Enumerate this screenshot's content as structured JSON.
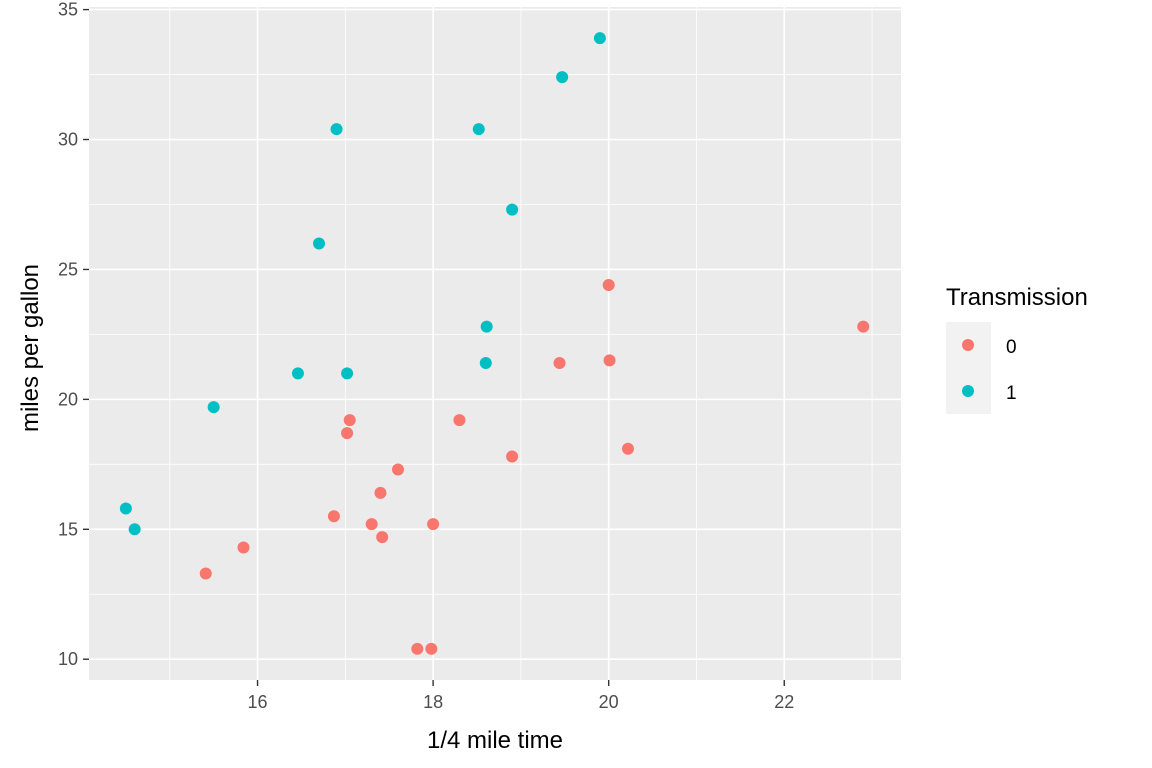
{
  "chart_data": {
    "type": "scatter",
    "title": "",
    "xlabel": "1/4 mile time",
    "ylabel": "miles per gallon",
    "xlim": [
      14.08,
      23.33
    ],
    "ylim": [
      9.2,
      35.1
    ],
    "x_ticks": [
      16,
      18,
      20,
      22
    ],
    "y_ticks": [
      10,
      15,
      20,
      25,
      30,
      35
    ],
    "grid": true,
    "legend": {
      "title": "Transmission",
      "position": "right"
    },
    "series": [
      {
        "name": "0",
        "color": "#F8766D",
        "points": [
          {
            "x": 20.22,
            "y": 18.1
          },
          {
            "x": 17.02,
            "y": 18.7
          },
          {
            "x": 19.44,
            "y": 21.4
          },
          {
            "x": 15.84,
            "y": 14.3
          },
          {
            "x": 20.0,
            "y": 24.4
          },
          {
            "x": 22.9,
            "y": 22.8
          },
          {
            "x": 18.3,
            "y": 19.2
          },
          {
            "x": 18.9,
            "y": 17.8
          },
          {
            "x": 17.4,
            "y": 16.4
          },
          {
            "x": 17.6,
            "y": 17.3
          },
          {
            "x": 18.0,
            "y": 15.2
          },
          {
            "x": 17.98,
            "y": 10.4
          },
          {
            "x": 17.82,
            "y": 10.4
          },
          {
            "x": 17.42,
            "y": 14.7
          },
          {
            "x": 20.01,
            "y": 21.5
          },
          {
            "x": 16.87,
            "y": 15.5
          },
          {
            "x": 17.3,
            "y": 15.2
          },
          {
            "x": 15.41,
            "y": 13.3
          },
          {
            "x": 17.05,
            "y": 19.2
          }
        ]
      },
      {
        "name": "1",
        "color": "#00BFC4",
        "points": [
          {
            "x": 16.46,
            "y": 21.0
          },
          {
            "x": 17.02,
            "y": 21.0
          },
          {
            "x": 18.61,
            "y": 22.8
          },
          {
            "x": 19.47,
            "y": 32.4
          },
          {
            "x": 18.52,
            "y": 30.4
          },
          {
            "x": 19.9,
            "y": 33.9
          },
          {
            "x": 18.9,
            "y": 27.3
          },
          {
            "x": 16.7,
            "y": 26.0
          },
          {
            "x": 16.9,
            "y": 30.4
          },
          {
            "x": 14.5,
            "y": 15.8
          },
          {
            "x": 15.5,
            "y": 19.7
          },
          {
            "x": 14.6,
            "y": 15.0
          },
          {
            "x": 18.6,
            "y": 21.4
          }
        ]
      }
    ]
  },
  "theme": {
    "panel_background": "#EBEBEB",
    "grid_major": "#FFFFFF",
    "tick_text": "#4D4D4D"
  }
}
